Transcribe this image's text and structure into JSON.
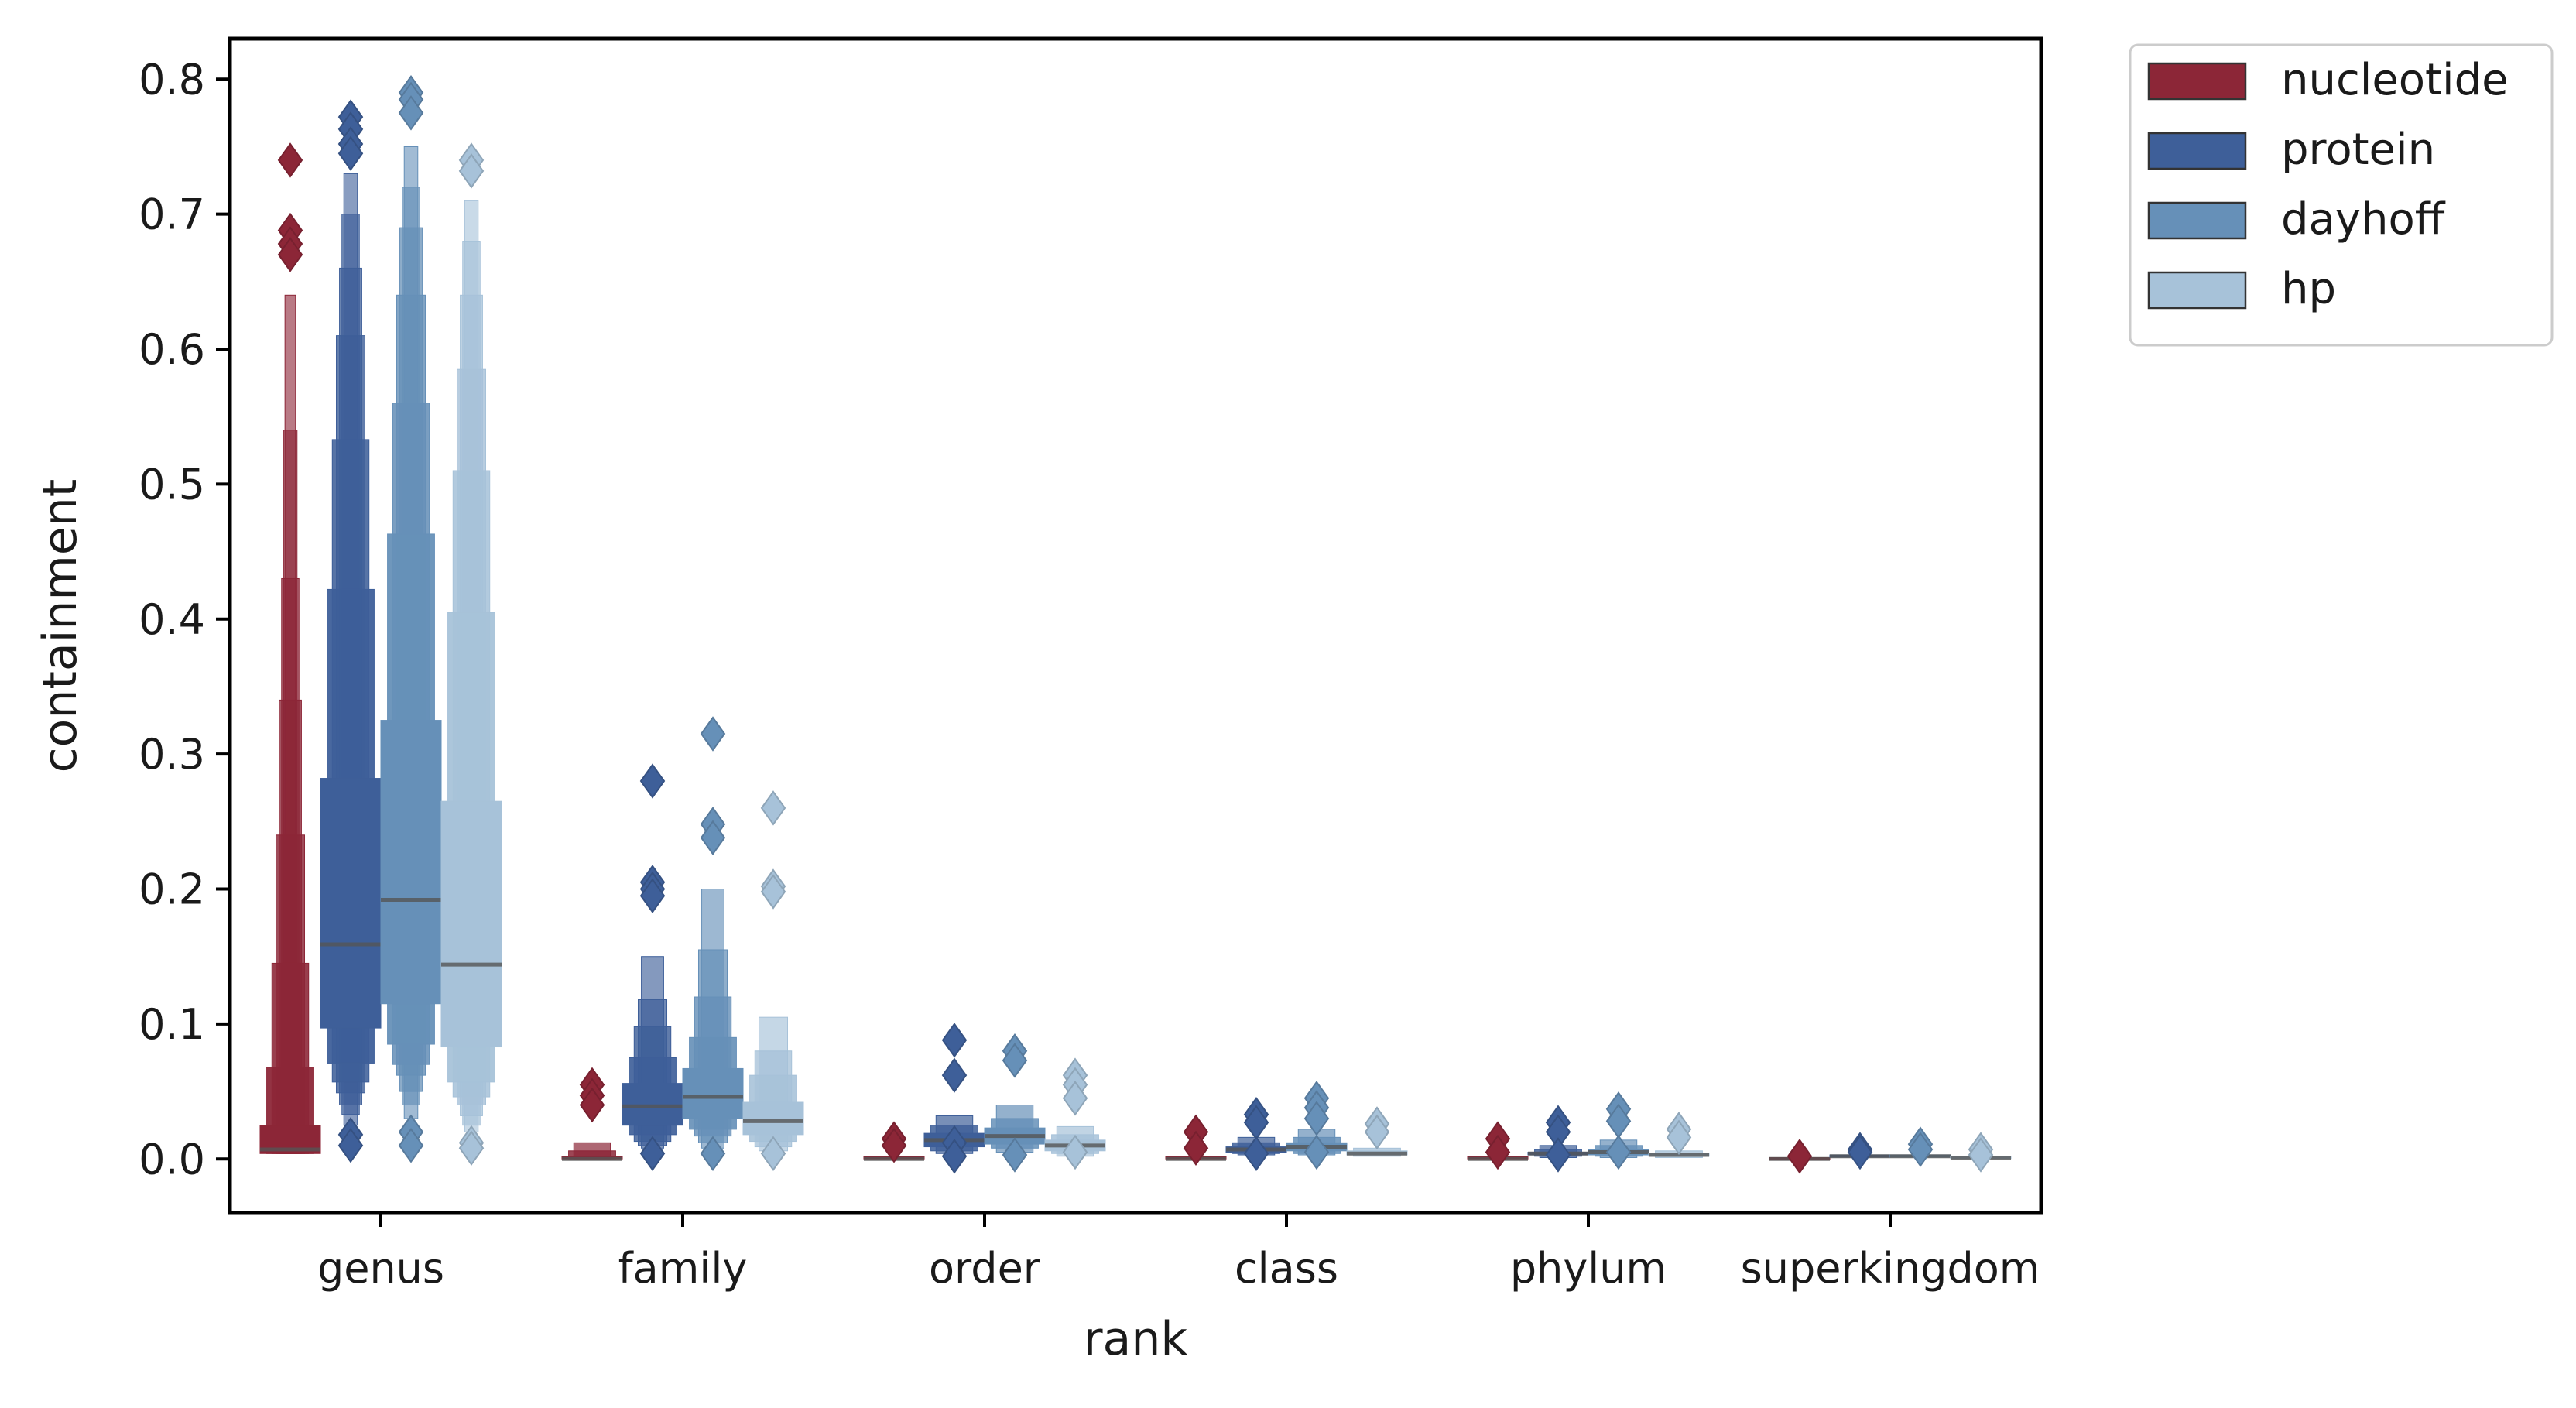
{
  "chart_data": {
    "type": "boxenplot",
    "xlabel": "rank",
    "ylabel": "containment",
    "ylim": [
      -0.04,
      0.83
    ],
    "yticks": [
      0.0,
      0.1,
      0.2,
      0.3,
      0.4,
      0.5,
      0.6,
      0.7,
      0.8
    ],
    "ytick_labels": [
      "0.0",
      "0.1",
      "0.2",
      "0.3",
      "0.4",
      "0.5",
      "0.6",
      "0.7",
      "0.8"
    ],
    "categories": [
      "genus",
      "family",
      "order",
      "class",
      "phylum",
      "superkingdom"
    ],
    "legend_position": "outside-top-right",
    "series": [
      {
        "name": "nucleotide",
        "color": "#8c2637",
        "data": [
          {
            "median": 0.007,
            "levels": [
              [
                0.004,
                0.025
              ],
              [
                0.004,
                0.068
              ],
              [
                0.004,
                0.145
              ],
              [
                0.004,
                0.24
              ],
              [
                0.004,
                0.34
              ],
              [
                0.004,
                0.43
              ],
              [
                0.004,
                0.54
              ],
              [
                0.004,
                0.64
              ]
            ],
            "outliers": [
              0.74,
              0.688,
              0.678,
              0.67
            ]
          },
          {
            "median": 0.0,
            "levels": [
              [
                0.0,
                0.002
              ],
              [
                0.0,
                0.006
              ],
              [
                0.0,
                0.012
              ]
            ],
            "outliers": [
              0.055,
              0.047,
              0.04
            ]
          },
          {
            "median": 0.0,
            "levels": [
              [
                0.0,
                0.002
              ]
            ],
            "outliers": [
              0.015,
              0.01
            ]
          },
          {
            "median": 0.0,
            "levels": [
              [
                0.0,
                0.002
              ]
            ],
            "outliers": [
              0.02,
              0.008
            ]
          },
          {
            "median": 0.0,
            "levels": [
              [
                0.0,
                0.002
              ]
            ],
            "outliers": [
              0.015,
              0.005
            ]
          },
          {
            "median": 0.0,
            "levels": [
              [
                0.0,
                0.001
              ]
            ],
            "outliers": [
              0.002
            ]
          }
        ]
      },
      {
        "name": "protein",
        "color": "#3e5f99",
        "data": [
          {
            "median": 0.159,
            "levels": [
              [
                0.097,
                0.282
              ],
              [
                0.071,
                0.422
              ],
              [
                0.057,
                0.533
              ],
              [
                0.049,
                0.61
              ],
              [
                0.04,
                0.66
              ],
              [
                0.033,
                0.7
              ],
              [
                0.025,
                0.73
              ]
            ],
            "outliers": [
              0.772,
              0.763,
              0.752,
              0.745,
              0.018,
              0.01
            ]
          },
          {
            "median": 0.039,
            "levels": [
              [
                0.025,
                0.056
              ],
              [
                0.018,
                0.075
              ],
              [
                0.013,
                0.098
              ],
              [
                0.01,
                0.118
              ],
              [
                0.008,
                0.15
              ]
            ],
            "outliers": [
              0.28,
              0.205,
              0.2,
              0.195,
              0.004
            ]
          },
          {
            "median": 0.014,
            "levels": [
              [
                0.009,
                0.019
              ],
              [
                0.006,
                0.025
              ],
              [
                0.004,
                0.032
              ]
            ],
            "outliers": [
              0.088,
              0.062,
              0.012,
              0.002
            ]
          },
          {
            "median": 0.007,
            "levels": [
              [
                0.005,
                0.009
              ],
              [
                0.004,
                0.012
              ],
              [
                0.003,
                0.016
              ]
            ],
            "outliers": [
              0.033,
              0.027,
              0.004
            ]
          },
          {
            "median": 0.004,
            "levels": [
              [
                0.003,
                0.005
              ],
              [
                0.002,
                0.007
              ],
              [
                0.001,
                0.01
              ]
            ],
            "outliers": [
              0.027,
              0.02,
              0.003
            ]
          },
          {
            "median": 0.002,
            "levels": [
              [
                0.002,
                0.003
              ]
            ],
            "outliers": [
              0.007,
              0.005
            ]
          }
        ]
      },
      {
        "name": "dayhoff",
        "color": "#6690b8",
        "data": [
          {
            "median": 0.192,
            "levels": [
              [
                0.115,
                0.325
              ],
              [
                0.085,
                0.463
              ],
              [
                0.07,
                0.56
              ],
              [
                0.062,
                0.64
              ],
              [
                0.05,
                0.69
              ],
              [
                0.04,
                0.72
              ],
              [
                0.03,
                0.75
              ]
            ],
            "outliers": [
              0.79,
              0.785,
              0.775,
              0.02,
              0.01
            ]
          },
          {
            "median": 0.046,
            "levels": [
              [
                0.03,
                0.067
              ],
              [
                0.022,
                0.09
              ],
              [
                0.017,
                0.12
              ],
              [
                0.012,
                0.155
              ],
              [
                0.008,
                0.2
              ]
            ],
            "outliers": [
              0.315,
              0.248,
              0.238,
              0.004
            ]
          },
          {
            "median": 0.017,
            "levels": [
              [
                0.011,
                0.023
              ],
              [
                0.008,
                0.03
              ],
              [
                0.005,
                0.04
              ]
            ],
            "outliers": [
              0.08,
              0.073,
              0.003
            ]
          },
          {
            "median": 0.009,
            "levels": [
              [
                0.006,
                0.012
              ],
              [
                0.004,
                0.016
              ],
              [
                0.003,
                0.022
              ]
            ],
            "outliers": [
              0.045,
              0.038,
              0.03,
              0.005
            ]
          },
          {
            "median": 0.005,
            "levels": [
              [
                0.003,
                0.007
              ],
              [
                0.002,
                0.01
              ],
              [
                0.001,
                0.014
              ]
            ],
            "outliers": [
              0.037,
              0.028,
              0.005
            ]
          },
          {
            "median": 0.002,
            "levels": [
              [
                0.002,
                0.003
              ]
            ],
            "outliers": [
              0.011,
              0.007
            ]
          }
        ]
      },
      {
        "name": "hp",
        "color": "#a7c2d9",
        "data": [
          {
            "median": 0.144,
            "levels": [
              [
                0.083,
                0.265
              ],
              [
                0.057,
                0.405
              ],
              [
                0.046,
                0.51
              ],
              [
                0.04,
                0.585
              ],
              [
                0.032,
                0.64
              ],
              [
                0.025,
                0.68
              ],
              [
                0.02,
                0.71
              ]
            ],
            "outliers": [
              0.74,
              0.732,
              0.012,
              0.008
            ]
          },
          {
            "median": 0.028,
            "levels": [
              [
                0.018,
                0.042
              ],
              [
                0.013,
                0.062
              ],
              [
                0.009,
                0.08
              ],
              [
                0.006,
                0.105
              ]
            ],
            "outliers": [
              0.26,
              0.202,
              0.198,
              0.004
            ]
          },
          {
            "median": 0.01,
            "levels": [
              [
                0.006,
                0.014
              ],
              [
                0.004,
                0.018
              ],
              [
                0.002,
                0.024
              ]
            ],
            "outliers": [
              0.062,
              0.055,
              0.045,
              0.005
            ]
          },
          {
            "median": 0.004,
            "levels": [
              [
                0.003,
                0.006
              ],
              [
                0.002,
                0.008
              ]
            ],
            "outliers": [
              0.026,
              0.02
            ]
          },
          {
            "median": 0.003,
            "levels": [
              [
                0.002,
                0.004
              ],
              [
                0.001,
                0.006
              ]
            ],
            "outliers": [
              0.022,
              0.016
            ]
          },
          {
            "median": 0.001,
            "levels": [
              [
                0.001,
                0.002
              ]
            ],
            "outliers": [
              0.007,
              0.003
            ]
          }
        ]
      }
    ]
  }
}
